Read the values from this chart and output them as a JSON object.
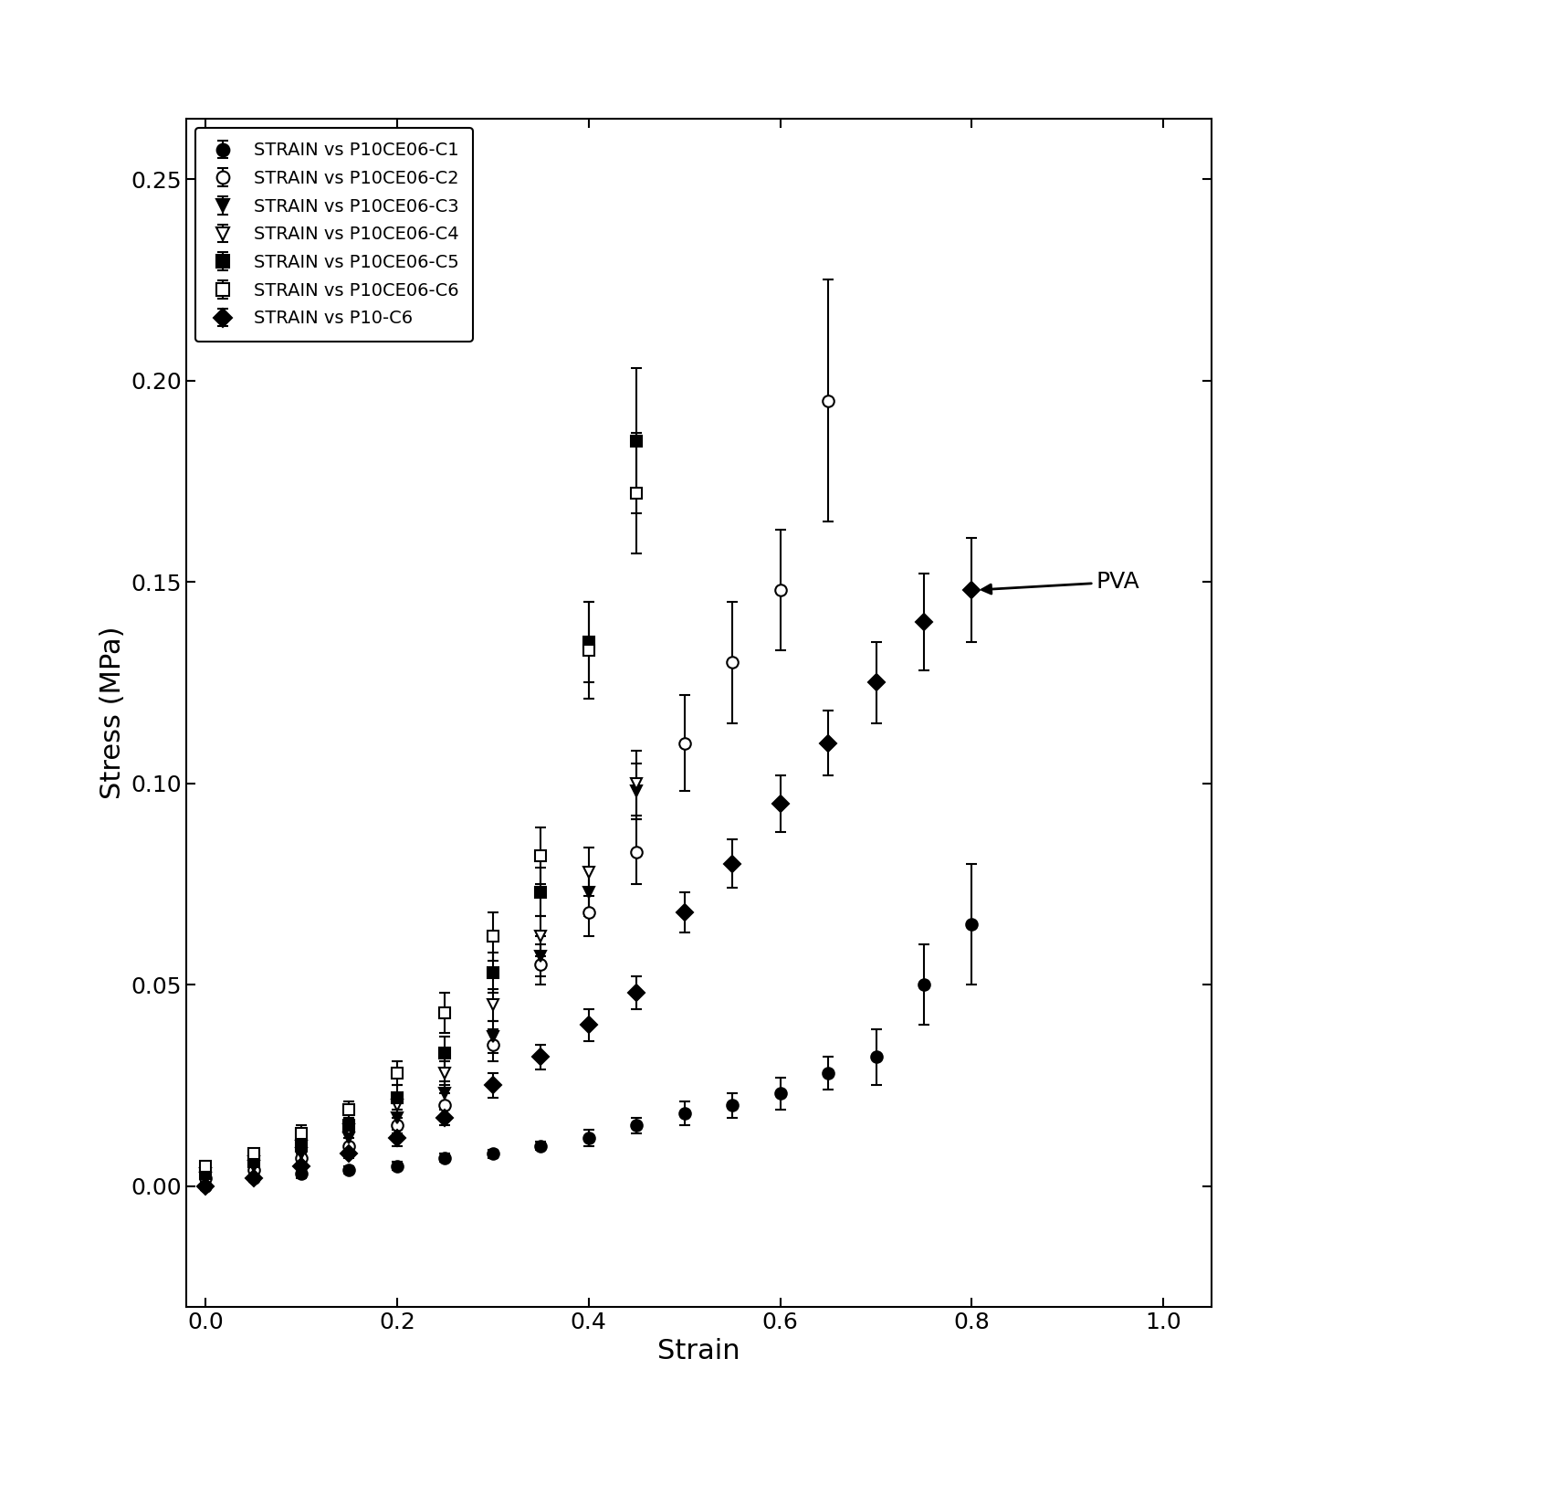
{
  "title": "",
  "xlabel": "Strain",
  "ylabel": "Stress (MPa)",
  "xlim": [
    -0.02,
    1.05
  ],
  "ylim": [
    -0.03,
    0.265
  ],
  "yticks": [
    0.0,
    0.05,
    0.1,
    0.15,
    0.2,
    0.25
  ],
  "xticks": [
    0.0,
    0.2,
    0.4,
    0.6,
    0.8,
    1.0
  ],
  "background_color": "#ffffff",
  "pva_annotation": "PVA",
  "series": [
    {
      "label": "STRAIN vs P10CE06-C1",
      "marker": "o",
      "filled": true,
      "x": [
        0.0,
        0.05,
        0.1,
        0.15,
        0.2,
        0.25,
        0.3,
        0.35,
        0.4,
        0.45,
        0.5,
        0.55,
        0.6,
        0.65,
        0.7,
        0.75,
        0.8
      ],
      "y": [
        0.0,
        0.002,
        0.003,
        0.004,
        0.005,
        0.007,
        0.008,
        0.01,
        0.012,
        0.015,
        0.018,
        0.02,
        0.023,
        0.028,
        0.032,
        0.05,
        0.065
      ],
      "yerr": [
        0.001,
        0.001,
        0.001,
        0.001,
        0.001,
        0.001,
        0.001,
        0.001,
        0.002,
        0.002,
        0.003,
        0.003,
        0.004,
        0.004,
        0.007,
        0.01,
        0.015
      ]
    },
    {
      "label": "STRAIN vs P10CE06-C2",
      "marker": "o",
      "filled": false,
      "x": [
        0.0,
        0.05,
        0.1,
        0.15,
        0.2,
        0.25,
        0.3,
        0.35,
        0.4,
        0.45,
        0.5,
        0.55,
        0.6,
        0.65
      ],
      "y": [
        0.002,
        0.004,
        0.007,
        0.01,
        0.015,
        0.02,
        0.035,
        0.055,
        0.068,
        0.083,
        0.11,
        0.13,
        0.148,
        0.195
      ],
      "yerr": [
        0.001,
        0.001,
        0.001,
        0.002,
        0.002,
        0.003,
        0.004,
        0.005,
        0.006,
        0.008,
        0.012,
        0.015,
        0.015,
        0.03
      ]
    },
    {
      "label": "STRAIN vs P10CE06-C3",
      "marker": "v",
      "filled": true,
      "x": [
        0.0,
        0.05,
        0.1,
        0.15,
        0.2,
        0.25,
        0.3,
        0.35,
        0.4,
        0.45
      ],
      "y": [
        0.002,
        0.005,
        0.008,
        0.012,
        0.017,
        0.023,
        0.037,
        0.057,
        0.073,
        0.098
      ],
      "yerr": [
        0.001,
        0.001,
        0.001,
        0.002,
        0.002,
        0.003,
        0.004,
        0.005,
        0.006,
        0.007
      ]
    },
    {
      "label": "STRAIN vs P10CE06-C4",
      "marker": "v",
      "filled": false,
      "x": [
        0.0,
        0.05,
        0.1,
        0.15,
        0.2,
        0.25,
        0.3,
        0.35,
        0.4,
        0.45
      ],
      "y": [
        0.003,
        0.006,
        0.01,
        0.014,
        0.02,
        0.028,
        0.045,
        0.062,
        0.078,
        0.1
      ],
      "yerr": [
        0.001,
        0.001,
        0.001,
        0.002,
        0.002,
        0.003,
        0.004,
        0.005,
        0.006,
        0.008
      ]
    },
    {
      "label": "STRAIN vs P10CE06-C5",
      "marker": "s",
      "filled": true,
      "x": [
        0.0,
        0.05,
        0.1,
        0.15,
        0.2,
        0.25,
        0.3,
        0.35,
        0.4,
        0.45
      ],
      "y": [
        0.003,
        0.006,
        0.01,
        0.015,
        0.022,
        0.033,
        0.053,
        0.073,
        0.135,
        0.185
      ],
      "yerr": [
        0.001,
        0.001,
        0.002,
        0.002,
        0.003,
        0.004,
        0.005,
        0.006,
        0.01,
        0.018
      ]
    },
    {
      "label": "STRAIN vs P10CE06-C6",
      "marker": "s",
      "filled": false,
      "x": [
        0.0,
        0.05,
        0.1,
        0.15,
        0.2,
        0.25,
        0.3,
        0.35,
        0.4,
        0.45
      ],
      "y": [
        0.005,
        0.008,
        0.013,
        0.019,
        0.028,
        0.043,
        0.062,
        0.082,
        0.133,
        0.172
      ],
      "yerr": [
        0.001,
        0.001,
        0.002,
        0.002,
        0.003,
        0.005,
        0.006,
        0.007,
        0.012,
        0.015
      ]
    },
    {
      "label": "STRAIN vs P10-C6",
      "marker": "D",
      "filled": true,
      "x": [
        0.0,
        0.05,
        0.1,
        0.15,
        0.2,
        0.25,
        0.3,
        0.35,
        0.4,
        0.45,
        0.5,
        0.55,
        0.6,
        0.65,
        0.7,
        0.75,
        0.8
      ],
      "y": [
        0.0,
        0.002,
        0.005,
        0.008,
        0.012,
        0.017,
        0.025,
        0.032,
        0.04,
        0.048,
        0.068,
        0.08,
        0.095,
        0.11,
        0.125,
        0.14,
        0.148
      ],
      "yerr": [
        0.001,
        0.001,
        0.001,
        0.001,
        0.002,
        0.002,
        0.003,
        0.003,
        0.004,
        0.004,
        0.005,
        0.006,
        0.007,
        0.008,
        0.01,
        0.012,
        0.013
      ]
    }
  ]
}
